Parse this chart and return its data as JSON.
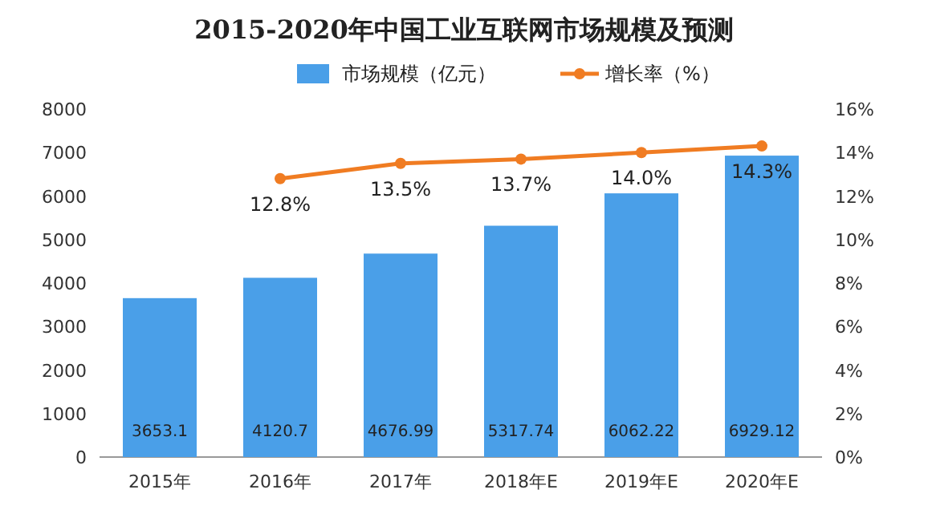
{
  "chart_data": {
    "type": "bar",
    "title": "2015-2020年中国工业互联网市场规模及预测",
    "categories": [
      "2015年",
      "2016年",
      "2017年",
      "2018年E",
      "2019年E",
      "2020年E"
    ],
    "series": [
      {
        "name": "市场规模（亿元）",
        "color": "#4a9fe8",
        "values": [
          3653.1,
          4120.7,
          4676.99,
          5317.74,
          6062.22,
          6929.12
        ],
        "value_labels": [
          "3653.1",
          "4120.7",
          "4676.99",
          "5317.74",
          "6062.22",
          "6929.12"
        ]
      },
      {
        "name": "增长率（%）",
        "type": "line",
        "axis": "y2",
        "color": "#f07c22",
        "marker": "circle",
        "values": [
          null,
          12.8,
          13.5,
          13.7,
          14.0,
          14.3
        ],
        "value_labels": [
          null,
          "12.8%",
          "13.5%",
          "13.7%",
          "14.0%",
          "14.3%"
        ]
      }
    ],
    "ylim": [
      0,
      8000
    ],
    "yticks": [
      0,
      1000,
      2000,
      3000,
      4000,
      5000,
      6000,
      7000,
      8000
    ],
    "y2lim": [
      0,
      16
    ],
    "y2ticks": [
      {
        "value": 0,
        "label": "0%"
      },
      {
        "value": 2,
        "label": "2%"
      },
      {
        "value": 4,
        "label": "4%"
      },
      {
        "value": 6,
        "label": "6%"
      },
      {
        "value": 8,
        "label": "8%"
      },
      {
        "value": 10,
        "label": "10%"
      },
      {
        "value": 12,
        "label": "12%"
      },
      {
        "value": 14,
        "label": "14%"
      },
      {
        "value": 16,
        "label": "16%"
      }
    ],
    "legend": "top"
  }
}
